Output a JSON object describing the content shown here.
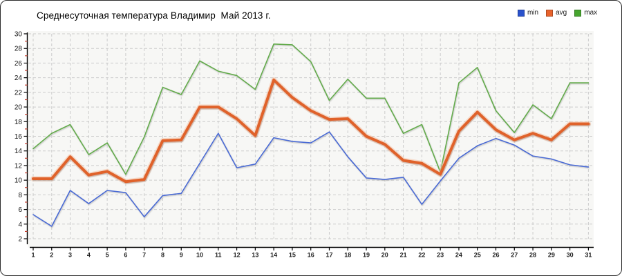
{
  "header": {
    "title": "Среднесуточная температура Владимир  Май 2013 г."
  },
  "legend": {
    "items": [
      {
        "label": "min",
        "color": "#2a52cc"
      },
      {
        "label": "avg",
        "color": "#e8632c"
      },
      {
        "label": "max",
        "color": "#46a52e"
      }
    ]
  },
  "chart_data": {
    "type": "line",
    "title": "Среднесуточная температура Владимир  Май 2013 г.",
    "xlabel": "",
    "ylabel": "",
    "x": [
      1,
      2,
      3,
      4,
      5,
      6,
      7,
      8,
      9,
      10,
      11,
      12,
      13,
      14,
      15,
      16,
      17,
      18,
      19,
      20,
      21,
      22,
      23,
      24,
      25,
      26,
      27,
      28,
      29,
      30,
      31
    ],
    "y_ticks": [
      2,
      4,
      6,
      8,
      10,
      12,
      14,
      16,
      18,
      20,
      22,
      24,
      26,
      28,
      30
    ],
    "y_minor_ticks": [
      3,
      5,
      7,
      9,
      11,
      13,
      15,
      17,
      19,
      21,
      23,
      25,
      27,
      29
    ],
    "ylim": [
      2,
      30
    ],
    "grid": true,
    "legend_position": "top-right",
    "plot_bg": "#f7f7f5",
    "grid_color": "#cccccc",
    "axis_color": "#000000",
    "minor_tick_color": "#c43b2a",
    "series": [
      {
        "name": "min",
        "color": "#4a6bd5",
        "width": 1.6,
        "values": [
          5.3,
          3.7,
          8.6,
          6.8,
          8.6,
          8.3,
          5.0,
          7.9,
          8.2,
          12.3,
          16.4,
          11.7,
          12.2,
          15.8,
          15.3,
          15.1,
          16.6,
          13.2,
          10.3,
          10.1,
          10.4,
          6.7,
          9.9,
          13.0,
          14.7,
          15.7,
          14.8,
          13.3,
          12.9,
          12.1,
          11.8
        ]
      },
      {
        "name": "avg",
        "color": "#e0622b",
        "halo": "#f6c3a4",
        "width": 4,
        "values": [
          10.2,
          10.2,
          13.2,
          10.7,
          11.2,
          9.8,
          10.1,
          15.4,
          15.5,
          20.0,
          20.0,
          18.4,
          16.1,
          23.7,
          21.3,
          19.5,
          18.3,
          18.4,
          16.0,
          14.9,
          12.7,
          12.3,
          10.8,
          16.7,
          19.3,
          16.9,
          15.5,
          16.4,
          15.5,
          17.7,
          17.7
        ]
      },
      {
        "name": "max",
        "color": "#64ac4b",
        "width": 1.6,
        "values": [
          14.3,
          16.4,
          17.6,
          13.5,
          15.1,
          10.8,
          15.9,
          22.7,
          21.7,
          26.3,
          24.9,
          24.3,
          22.4,
          28.6,
          28.5,
          26.2,
          20.9,
          23.8,
          21.2,
          21.2,
          16.4,
          17.6,
          11.1,
          23.3,
          25.4,
          19.5,
          16.5,
          20.3,
          18.4,
          23.3,
          23.3
        ]
      }
    ]
  }
}
